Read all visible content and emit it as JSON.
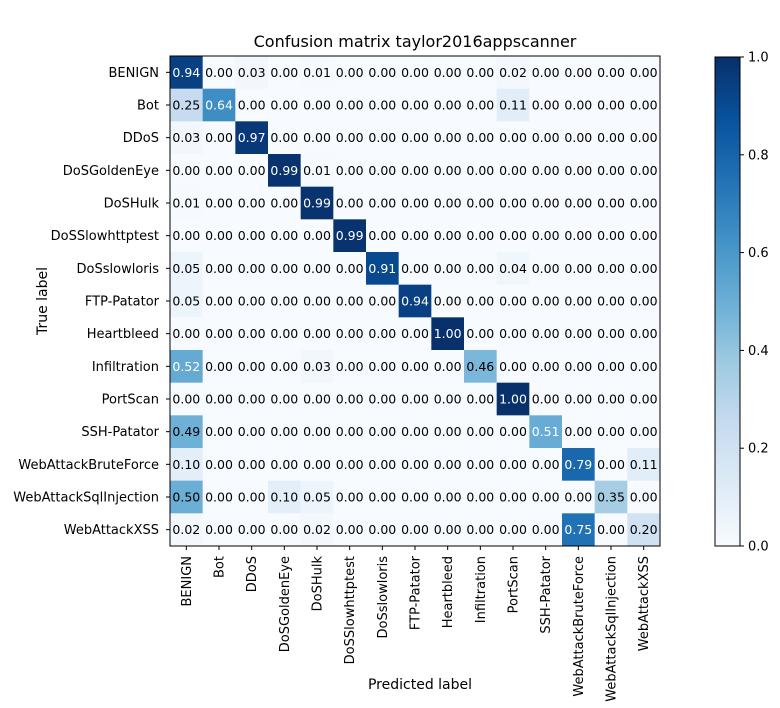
{
  "chart_data": {
    "type": "heatmap",
    "title": "Confusion matrix taylor2016appscanner",
    "xlabel": "Predicted label",
    "ylabel": "True label",
    "labels": [
      "BENIGN",
      "Bot",
      "DDoS",
      "DoSGoldenEye",
      "DoSHulk",
      "DoSSlowhttptest",
      "DoSslowloris",
      "FTP-Patator",
      "Heartbleed",
      "Infiltration",
      "PortScan",
      "SSH-Patator",
      "WebAttackBruteForce",
      "WebAttackSqlInjection",
      "WebAttackXSS"
    ],
    "matrix": [
      [
        0.94,
        0.0,
        0.03,
        0.0,
        0.01,
        0.0,
        0.0,
        0.0,
        0.0,
        0.0,
        0.02,
        0.0,
        0.0,
        0.0,
        0.0
      ],
      [
        0.25,
        0.64,
        0.0,
        0.0,
        0.0,
        0.0,
        0.0,
        0.0,
        0.0,
        0.0,
        0.11,
        0.0,
        0.0,
        0.0,
        0.0
      ],
      [
        0.03,
        0.0,
        0.97,
        0.0,
        0.0,
        0.0,
        0.0,
        0.0,
        0.0,
        0.0,
        0.0,
        0.0,
        0.0,
        0.0,
        0.0
      ],
      [
        0.0,
        0.0,
        0.0,
        0.99,
        0.01,
        0.0,
        0.0,
        0.0,
        0.0,
        0.0,
        0.0,
        0.0,
        0.0,
        0.0,
        0.0
      ],
      [
        0.01,
        0.0,
        0.0,
        0.0,
        0.99,
        0.0,
        0.0,
        0.0,
        0.0,
        0.0,
        0.0,
        0.0,
        0.0,
        0.0,
        0.0
      ],
      [
        0.0,
        0.0,
        0.0,
        0.0,
        0.0,
        0.99,
        0.0,
        0.0,
        0.0,
        0.0,
        0.0,
        0.0,
        0.0,
        0.0,
        0.0
      ],
      [
        0.05,
        0.0,
        0.0,
        0.0,
        0.0,
        0.0,
        0.91,
        0.0,
        0.0,
        0.0,
        0.04,
        0.0,
        0.0,
        0.0,
        0.0
      ],
      [
        0.05,
        0.0,
        0.0,
        0.0,
        0.0,
        0.0,
        0.0,
        0.94,
        0.0,
        0.0,
        0.0,
        0.0,
        0.0,
        0.0,
        0.0
      ],
      [
        0.0,
        0.0,
        0.0,
        0.0,
        0.0,
        0.0,
        0.0,
        0.0,
        1.0,
        0.0,
        0.0,
        0.0,
        0.0,
        0.0,
        0.0
      ],
      [
        0.52,
        0.0,
        0.0,
        0.0,
        0.03,
        0.0,
        0.0,
        0.0,
        0.0,
        0.46,
        0.0,
        0.0,
        0.0,
        0.0,
        0.0
      ],
      [
        0.0,
        0.0,
        0.0,
        0.0,
        0.0,
        0.0,
        0.0,
        0.0,
        0.0,
        0.0,
        1.0,
        0.0,
        0.0,
        0.0,
        0.0
      ],
      [
        0.49,
        0.0,
        0.0,
        0.0,
        0.0,
        0.0,
        0.0,
        0.0,
        0.0,
        0.0,
        0.0,
        0.51,
        0.0,
        0.0,
        0.0
      ],
      [
        0.1,
        0.0,
        0.0,
        0.0,
        0.0,
        0.0,
        0.0,
        0.0,
        0.0,
        0.0,
        0.0,
        0.0,
        0.79,
        0.0,
        0.11
      ],
      [
        0.5,
        0.0,
        0.0,
        0.1,
        0.05,
        0.0,
        0.0,
        0.0,
        0.0,
        0.0,
        0.0,
        0.0,
        0.0,
        0.35,
        0.0
      ],
      [
        0.02,
        0.0,
        0.0,
        0.0,
        0.02,
        0.0,
        0.0,
        0.0,
        0.0,
        0.0,
        0.0,
        0.0,
        0.75,
        0.0,
        0.2
      ]
    ],
    "value_range": [
      0,
      1
    ],
    "colormap": "Blues",
    "colorbar": {
      "ticks": [
        0.0,
        0.2,
        0.4,
        0.6,
        0.8,
        1.0
      ],
      "tick_labels": [
        "0.0",
        "0.2",
        "0.4",
        "0.6",
        "0.8",
        "1.0"
      ]
    },
    "grid": false
  }
}
